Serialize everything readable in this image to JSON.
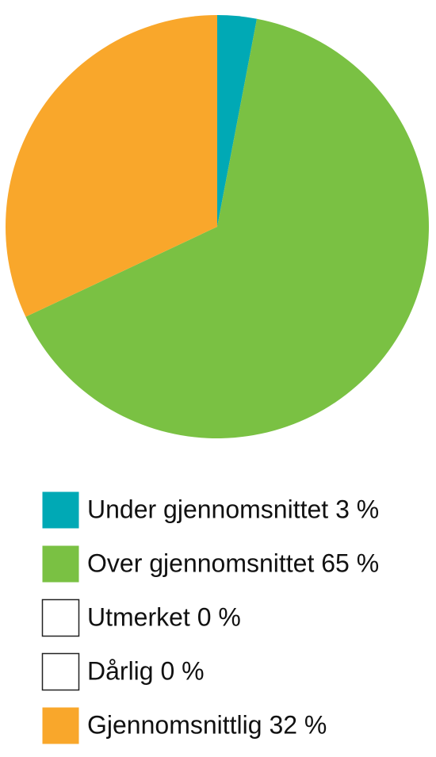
{
  "chart_data": {
    "type": "pie",
    "categories": [
      "Under gjennomsnittet 3 %",
      "Over gjennomsnittet 65 %",
      "Utmerket 0 %",
      "Dårlig 0 %",
      "Gjennomsnittlig 32 %"
    ],
    "values": [
      3,
      65,
      0,
      0,
      32
    ],
    "colors": [
      "#00a9b5",
      "#7ac143",
      "#ffffff",
      "#ffffff",
      "#f9a72b"
    ]
  }
}
